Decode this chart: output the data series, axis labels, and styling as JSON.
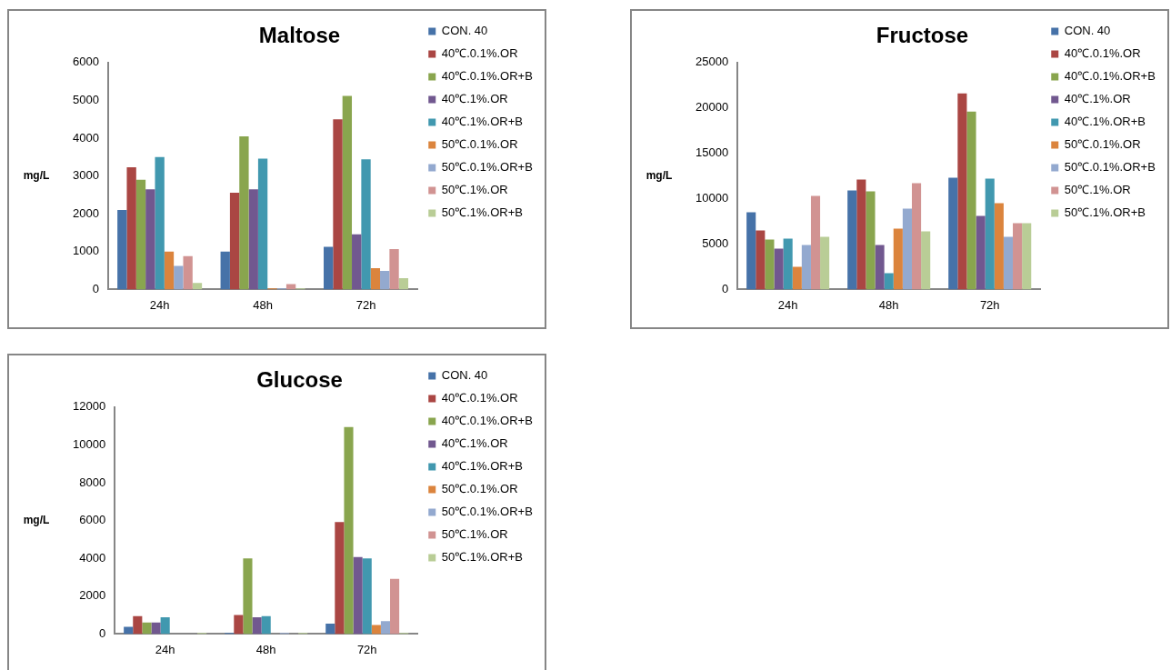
{
  "chart_data": [
    {
      "type": "bar",
      "title": "Maltose",
      "ylabel": "mg/L",
      "categories": [
        "24h",
        "48h",
        "72h"
      ],
      "ylim": [
        0,
        6000
      ],
      "yticks": [
        0,
        1000,
        2000,
        3000,
        4000,
        5000,
        6000
      ],
      "grid": false,
      "legend": "right",
      "series": [
        {
          "name": "CON. 40",
          "color": "#4672a8",
          "values": [
            2100,
            1000,
            1130
          ]
        },
        {
          "name": "40℃.0.1%.OR",
          "color": "#aa4643",
          "values": [
            3230,
            2560,
            4500
          ]
        },
        {
          "name": "40℃.0.1%.OR+B",
          "color": "#89a54e",
          "values": [
            2900,
            4050,
            5120
          ]
        },
        {
          "name": "40℃.1%.OR",
          "color": "#71588f",
          "values": [
            2650,
            2650,
            1460
          ]
        },
        {
          "name": "40℃.1%.OR+B",
          "color": "#4198af",
          "values": [
            3500,
            3460,
            3440
          ]
        },
        {
          "name": "50℃.0.1%.OR",
          "color": "#db843d",
          "values": [
            1000,
            30,
            560
          ]
        },
        {
          "name": "50℃.0.1%.OR+B",
          "color": "#93a9cf",
          "values": [
            620,
            30,
            490
          ]
        },
        {
          "name": "50℃.1%.OR",
          "color": "#d19392",
          "values": [
            880,
            140,
            1070
          ]
        },
        {
          "name": "50℃.1%.OR+B",
          "color": "#b9cd96",
          "values": [
            170,
            30,
            300
          ]
        }
      ]
    },
    {
      "type": "bar",
      "title": "Fructose",
      "ylabel": "mg/L",
      "categories": [
        "24h",
        "48h",
        "72h"
      ],
      "ylim": [
        0,
        25000
      ],
      "yticks": [
        0,
        5000,
        10000,
        15000,
        20000,
        25000
      ],
      "grid": false,
      "legend": "right",
      "series": [
        {
          "name": "CON. 40",
          "color": "#4672a8",
          "values": [
            8500,
            10900,
            12300
          ]
        },
        {
          "name": "40℃.0.1%.OR",
          "color": "#aa4643",
          "values": [
            6500,
            12100,
            21600
          ]
        },
        {
          "name": "40℃.0.1%.OR+B",
          "color": "#89a54e",
          "values": [
            5500,
            10800,
            19600
          ]
        },
        {
          "name": "40℃.1%.OR",
          "color": "#71588f",
          "values": [
            4500,
            4900,
            8100
          ]
        },
        {
          "name": "40℃.1%.OR+B",
          "color": "#4198af",
          "values": [
            5600,
            1800,
            12200
          ]
        },
        {
          "name": "50℃.0.1%.OR",
          "color": "#db843d",
          "values": [
            2500,
            6700,
            9500
          ]
        },
        {
          "name": "50℃.0.1%.OR+B",
          "color": "#93a9cf",
          "values": [
            4900,
            8900,
            5800
          ]
        },
        {
          "name": "50℃.1%.OR",
          "color": "#d19392",
          "values": [
            10300,
            11700,
            7300
          ]
        },
        {
          "name": "50℃.1%.OR+B",
          "color": "#b9cd96",
          "values": [
            5800,
            6400,
            7300
          ]
        }
      ]
    },
    {
      "type": "bar",
      "title": "Glucose",
      "ylabel": "mg/L",
      "categories": [
        "24h",
        "48h",
        "72h"
      ],
      "ylim": [
        0,
        12000
      ],
      "yticks": [
        0,
        2000,
        4000,
        6000,
        8000,
        10000,
        12000
      ],
      "grid": false,
      "legend": "right",
      "series": [
        {
          "name": "CON. 40",
          "color": "#4672a8",
          "values": [
            380,
            50,
            550
          ]
        },
        {
          "name": "40℃.0.1%.OR",
          "color": "#aa4643",
          "values": [
            950,
            1000,
            5920
          ]
        },
        {
          "name": "40℃.0.1%.OR+B",
          "color": "#89a54e",
          "values": [
            610,
            4000,
            10940
          ]
        },
        {
          "name": "40℃.1%.OR",
          "color": "#71588f",
          "values": [
            610,
            880,
            4070
          ]
        },
        {
          "name": "40℃.1%.OR+B",
          "color": "#4198af",
          "values": [
            880,
            950,
            4000
          ]
        },
        {
          "name": "50℃.0.1%.OR",
          "color": "#db843d",
          "values": [
            0,
            0,
            480
          ]
        },
        {
          "name": "50℃.0.1%.OR+B",
          "color": "#93a9cf",
          "values": [
            0,
            50,
            680
          ]
        },
        {
          "name": "50℃.1%.OR",
          "color": "#d19392",
          "values": [
            0,
            0,
            2910
          ]
        },
        {
          "name": "50℃.1%.OR+B",
          "color": "#b9cd96",
          "values": [
            50,
            50,
            50
          ]
        }
      ]
    }
  ]
}
